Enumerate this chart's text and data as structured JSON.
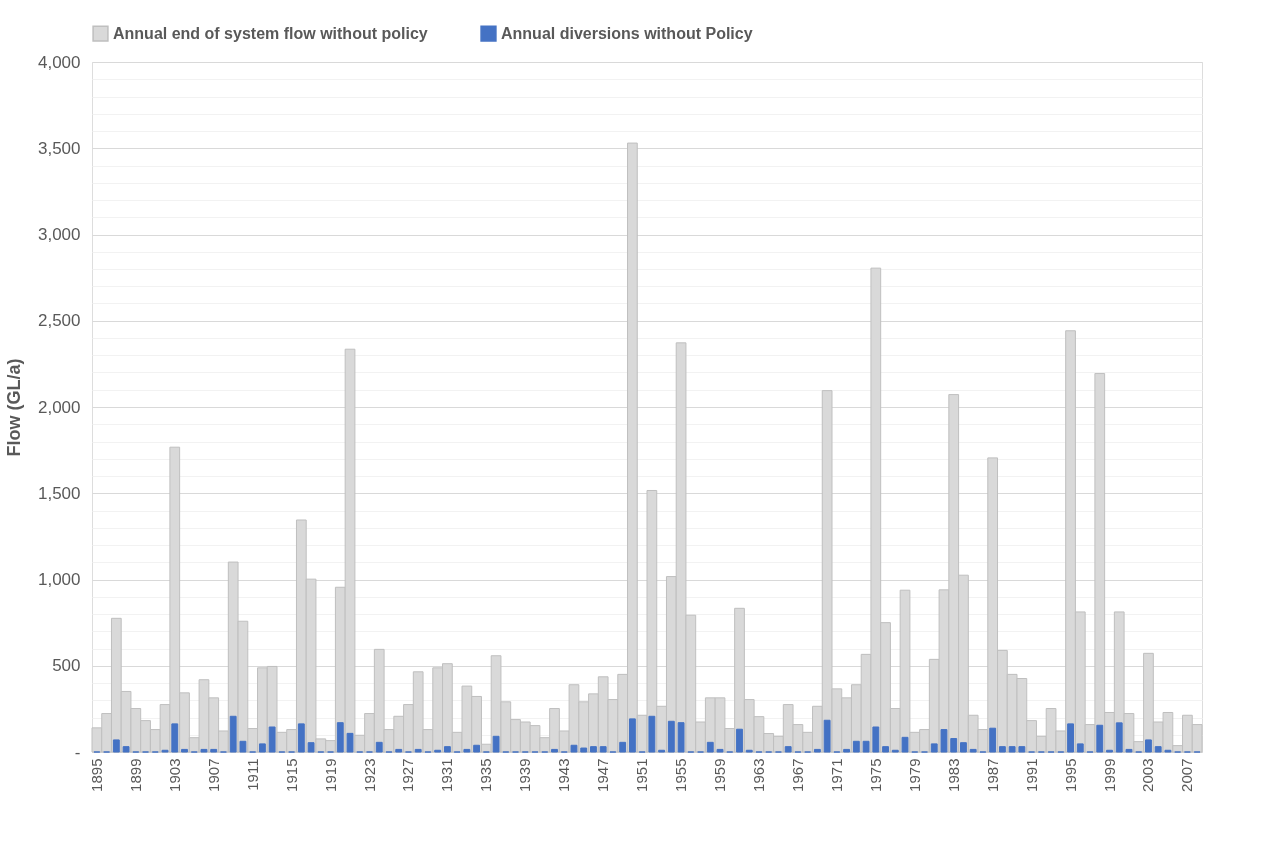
{
  "chart_data": {
    "type": "bar",
    "ylabel": "Flow (GL/a)",
    "categories": [
      "1895",
      null,
      null,
      null,
      "1899",
      null,
      null,
      null,
      "1903",
      null,
      null,
      null,
      "1907",
      null,
      null,
      null,
      "1911",
      null,
      null,
      null,
      "1915",
      null,
      null,
      null,
      "1919",
      null,
      null,
      null,
      "1923",
      null,
      null,
      null,
      "1927",
      null,
      null,
      null,
      "1931",
      null,
      null,
      null,
      "1935",
      null,
      null,
      null,
      "1939",
      null,
      null,
      null,
      "1943",
      null,
      null,
      null,
      "1947",
      null,
      null,
      null,
      "1951",
      null,
      null,
      null,
      "1955",
      null,
      null,
      null,
      "1959",
      null,
      null,
      null,
      "1963",
      null,
      null,
      null,
      "1967",
      null,
      null,
      null,
      "1971",
      null,
      null,
      null,
      "1975",
      null,
      null,
      null,
      "1979",
      null,
      null,
      null,
      "1983",
      null,
      null,
      null,
      "1987",
      null,
      null,
      null,
      "1991",
      null,
      null,
      null,
      "1995",
      null,
      null,
      null,
      "1999",
      null,
      null,
      null,
      "2003",
      null,
      null,
      null,
      "2007",
      null
    ],
    "series": [
      {
        "name": "Annual end of system flow without policy",
        "color": "#d9d9d9",
        "values": [
          140,
          223,
          775,
          351,
          252,
          182,
          130,
          275,
          1767,
          343,
          83,
          419,
          314,
          122,
          1101,
          758,
          136,
          488,
          496,
          114,
          130,
          1345,
          1002,
          76,
          66,
          955,
          2335,
          97,
          223,
          595,
          130,
          207,
          275,
          465,
          130,
          488,
          512,
          114,
          382,
          322,
          45,
          558,
          291,
          188,
          174,
          153,
          83,
          252,
          122,
          390,
          291,
          337,
          436,
          304,
          450,
          3530,
          213,
          1516,
          265,
          1017,
          2372,
          793,
          174,
          314,
          314,
          136,
          833,
          304,
          205,
          107,
          91,
          275,
          159,
          114,
          265,
          2095,
          366,
          314,
          390,
          566,
          2805,
          750,
          252,
          938,
          114,
          130,
          537,
          940,
          2072,
          1025,
          213,
          130,
          1705,
          589,
          450,
          426,
          182,
          91,
          252,
          122,
          2442,
          812,
          159,
          2194,
          229,
          812,
          223,
          60,
          572,
          174,
          229,
          37,
          213,
          159
        ]
      },
      {
        "name": "Annual diversions without Policy",
        "color": "#4472c4",
        "values": [
          0,
          0,
          70,
          31,
          0,
          0,
          0,
          10,
          163,
          15,
          0,
          15,
          15,
          0,
          207,
          62,
          0,
          47,
          145,
          0,
          0,
          163,
          54,
          0,
          0,
          170,
          108,
          0,
          0,
          56,
          0,
          15,
          0,
          15,
          0,
          10,
          31,
          0,
          15,
          39,
          0,
          91,
          0,
          0,
          0,
          0,
          0,
          15,
          0,
          39,
          23,
          31,
          31,
          0,
          56,
          192,
          0,
          207,
          10,
          178,
          170,
          0,
          0,
          56,
          15,
          0,
          132,
          10,
          0,
          0,
          0,
          31,
          0,
          0,
          15,
          184,
          0,
          15,
          62,
          62,
          145,
          31,
          10,
          85,
          0,
          0,
          47,
          130,
          78,
          54,
          15,
          0,
          138,
          31,
          31,
          31,
          0,
          0,
          0,
          0,
          163,
          47,
          0,
          155,
          10,
          169,
          15,
          0,
          70,
          31,
          10,
          0,
          0,
          0
        ]
      }
    ],
    "ylim": [
      0,
      4000
    ],
    "yticks": [
      {
        "value": 0,
        "label": "-"
      },
      {
        "value": 100,
        "label": null
      },
      {
        "value": 200,
        "label": null
      },
      {
        "value": 300,
        "label": null
      },
      {
        "value": 400,
        "label": null
      },
      500,
      {
        "value": 600,
        "label": null
      },
      {
        "value": 700,
        "label": null
      },
      {
        "value": 800,
        "label": null
      },
      {
        "value": 900,
        "label": null
      },
      {
        "value": 1000,
        "label": "1,000"
      },
      {
        "value": 1100,
        "label": null
      },
      {
        "value": 1200,
        "label": null
      },
      {
        "value": 1300,
        "label": null
      },
      {
        "value": 1400,
        "label": null
      },
      {
        "value": 1500,
        "label": "1,500"
      },
      {
        "value": 1600,
        "label": null
      },
      {
        "value": 1700,
        "label": null
      },
      {
        "value": 1800,
        "label": null
      },
      {
        "value": 1900,
        "label": null
      },
      {
        "value": 2000,
        "label": "2,000"
      },
      {
        "value": 2100,
        "label": null
      },
      {
        "value": 2200,
        "label": null
      },
      {
        "value": 2300,
        "label": null
      },
      {
        "value": 2400,
        "label": null
      },
      {
        "value": 2500,
        "label": "2,500"
      },
      {
        "value": 2600,
        "label": null
      },
      {
        "value": 2700,
        "label": null
      },
      {
        "value": 2800,
        "label": null
      },
      {
        "value": 2900,
        "label": null
      },
      {
        "value": 3000,
        "label": "3,000"
      },
      {
        "value": 3100,
        "label": null
      },
      {
        "value": 3200,
        "label": null
      },
      {
        "value": 3300,
        "label": null
      },
      {
        "value": 3400,
        "label": null
      },
      {
        "value": 3500,
        "label": "3,500"
      },
      {
        "value": 3600,
        "label": null
      },
      {
        "value": 3700,
        "label": null
      },
      {
        "value": 3800,
        "label": null
      },
      {
        "value": 3900,
        "label": null
      },
      {
        "value": 4000,
        "label": "4,000"
      }
    ],
    "grid": "y",
    "legend": "top"
  }
}
